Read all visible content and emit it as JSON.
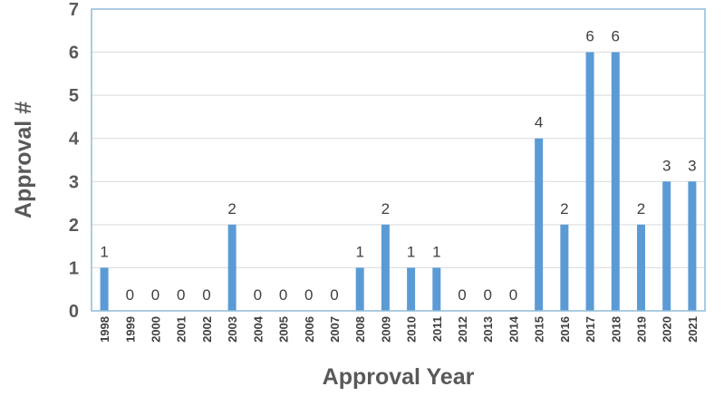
{
  "chart_data": {
    "type": "bar",
    "categories": [
      "1998",
      "1999",
      "2000",
      "2001",
      "2002",
      "2003",
      "2004",
      "2005",
      "2006",
      "2007",
      "2008",
      "2009",
      "2010",
      "2011",
      "2012",
      "2013",
      "2014",
      "2015",
      "2016",
      "2017",
      "2018",
      "2019",
      "2020",
      "2021"
    ],
    "values": [
      1,
      0,
      0,
      0,
      0,
      2,
      0,
      0,
      0,
      0,
      1,
      2,
      1,
      1,
      0,
      0,
      0,
      4,
      2,
      6,
      6,
      2,
      3,
      3
    ],
    "data_labels": [
      "1",
      "0",
      "0",
      "0",
      "0",
      "2",
      "0",
      "0",
      "0",
      "0",
      "1",
      "2",
      "1",
      "1",
      "0",
      "0",
      "0",
      "4",
      "2",
      "6",
      "6",
      "2",
      "3",
      "3"
    ],
    "yticks": [
      "0",
      "1",
      "2",
      "3",
      "4",
      "5",
      "6",
      "7"
    ],
    "xlabel": "Approval Year",
    "ylabel": "Approval #",
    "ylim": [
      0,
      7
    ],
    "grid": true,
    "legend": "none",
    "colors": {
      "bar": "#5b9bd5",
      "grid": "#d9d9d9",
      "frame": "#8fbcd9",
      "text": "#595959"
    }
  }
}
